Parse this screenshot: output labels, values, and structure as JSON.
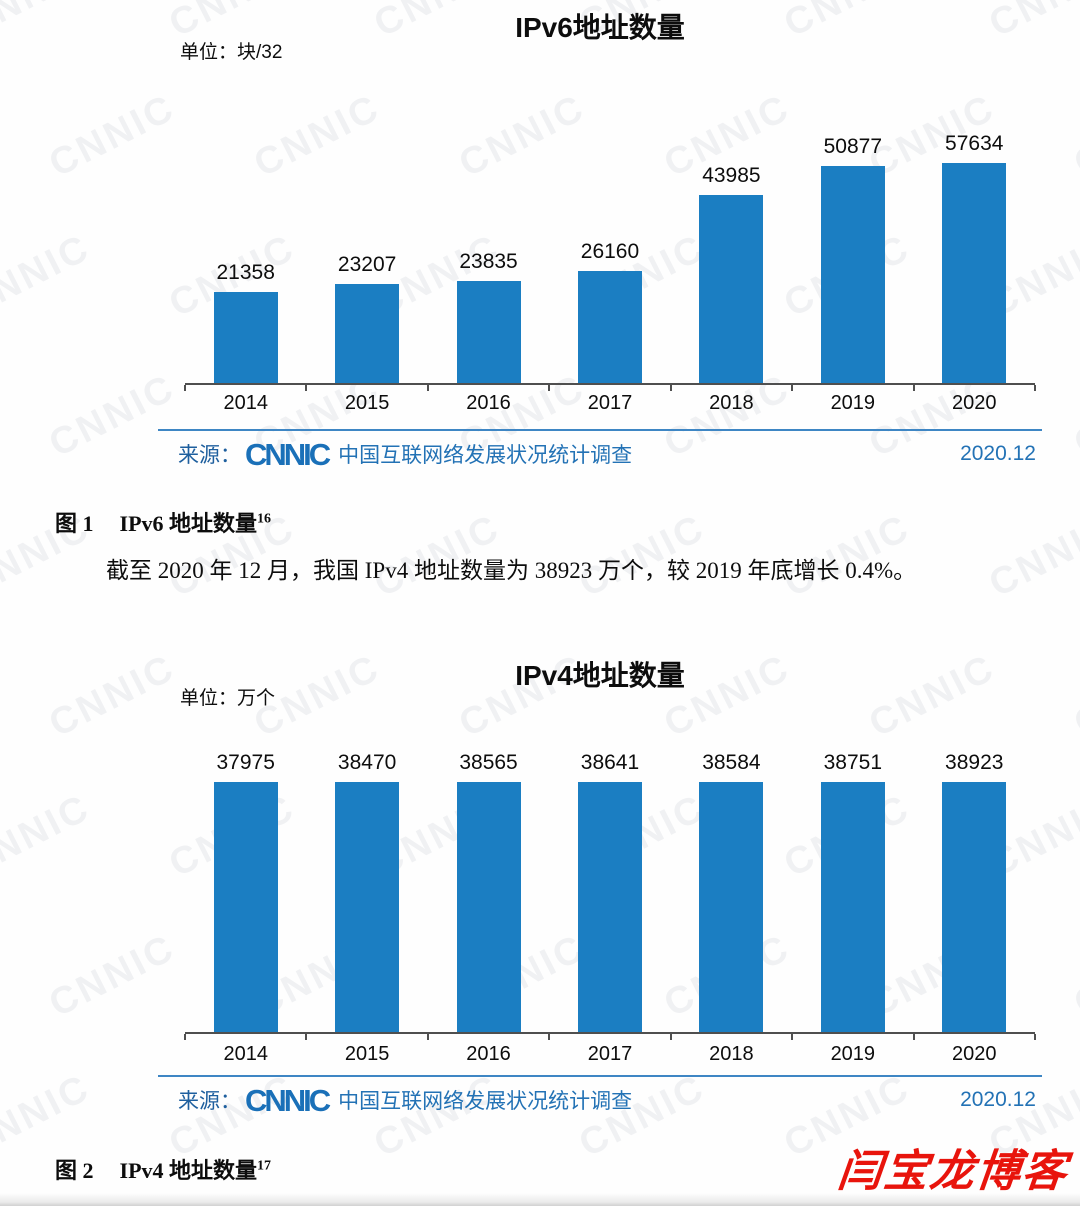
{
  "page": {
    "watermark_text": "CNNIC",
    "stamp_text": "闫宝龙博客",
    "stamp_color": "#e8140c",
    "accent_blue": "#3e86c4"
  },
  "chart_data": [
    {
      "type": "bar",
      "title": "IPv6地址数量",
      "unit_label": "单位：块/32",
      "categories": [
        "2014",
        "2015",
        "2016",
        "2017",
        "2018",
        "2019",
        "2020"
      ],
      "values": [
        21358,
        23207,
        23835,
        26160,
        43985,
        50877,
        57634
      ],
      "bar_color": "#1b7ec2",
      "ylim": [
        0,
        58500
      ],
      "grid": false,
      "value_labels": true,
      "legend": "none",
      "source": {
        "prefix": "来源：",
        "logo": "CNNIC",
        "text": "中国互联网络发展状况统计调查",
        "date": "2020.12"
      }
    },
    {
      "type": "bar",
      "title": "IPv4地址数量",
      "unit_label": "单位：万个",
      "categories": [
        "2014",
        "2015",
        "2016",
        "2017",
        "2018",
        "2019",
        "2020"
      ],
      "values": [
        37975,
        38470,
        38565,
        38641,
        38584,
        38751,
        38923
      ],
      "bar_color": "#1b7ec2",
      "ylim": [
        0,
        40000
      ],
      "grid": false,
      "value_labels": true,
      "legend": "none",
      "source": {
        "prefix": "来源：",
        "logo": "CNNIC",
        "text": "中国互联网络发展状况统计调查",
        "date": "2020.12"
      }
    }
  ],
  "captions": [
    {
      "label": "图 1",
      "title": "IPv6 地址数量",
      "footnote": "16"
    },
    {
      "label": "图 2",
      "title": "IPv4 地址数量",
      "footnote": "17"
    }
  ],
  "paragraph": "截至 2020 年 12 月，我国 IPv4 地址数量为 38923 万个，较 2019 年底增长 0.4%。"
}
